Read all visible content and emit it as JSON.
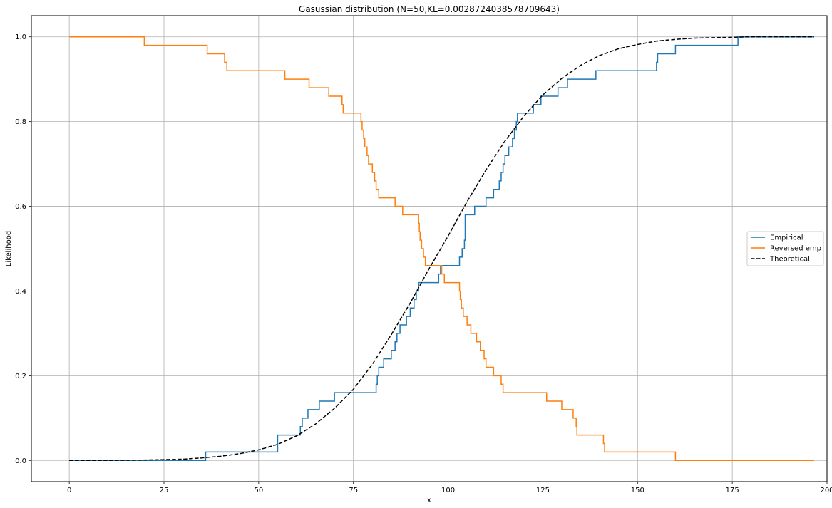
{
  "chart_data": {
    "type": "line",
    "title": "Gasussian distribution (N=50,KL=0.0028724038578709643)",
    "xlabel": "x",
    "ylabel": "Likelihood",
    "xlim": [
      -10,
      200
    ],
    "ylim": [
      -0.05,
      1.05
    ],
    "xticks": [
      0,
      25,
      50,
      75,
      100,
      125,
      150,
      175,
      200
    ],
    "yticks": [
      0.0,
      0.2,
      0.4,
      0.6,
      0.8,
      1.0
    ],
    "xtick_labels": [
      "0",
      "25",
      "50",
      "75",
      "100",
      "125",
      "150",
      "175",
      "200"
    ],
    "ytick_labels": [
      "0.0",
      "0.2",
      "0.4",
      "0.6",
      "0.8",
      "1.0"
    ],
    "grid": true,
    "legend_position": "center-right",
    "series": [
      {
        "name": "Empirical",
        "style": "step",
        "color": "#1f77b4",
        "x": [
          0,
          36,
          55,
          61,
          61.5,
          61.7,
          63,
          66,
          70,
          81,
          81.3,
          81.7,
          83,
          85,
          86,
          86.5,
          87.3,
          88,
          89,
          90,
          91,
          91.6,
          92.2,
          97.5,
          98,
          103,
          103.7,
          104.3,
          104.5,
          107,
          110,
          112,
          113.5,
          114,
          114.5,
          115,
          116,
          117,
          117.5,
          118,
          118.3,
          119,
          122.5,
          124.5,
          125,
          129,
          131.5,
          139,
          155,
          155.3,
          156,
          160,
          176.5,
          196.6
        ],
        "y": [
          0.0,
          0.02,
          0.06,
          0.08,
          0.1,
          0.1,
          0.12,
          0.14,
          0.16,
          0.18,
          0.2,
          0.22,
          0.24,
          0.26,
          0.28,
          0.3,
          0.32,
          0.32,
          0.34,
          0.36,
          0.38,
          0.4,
          0.42,
          0.44,
          0.46,
          0.48,
          0.5,
          0.52,
          0.58,
          0.6,
          0.62,
          0.64,
          0.66,
          0.68,
          0.7,
          0.72,
          0.74,
          0.76,
          0.78,
          0.8,
          0.82,
          0.82,
          0.84,
          0.86,
          0.86,
          0.88,
          0.9,
          0.92,
          0.94,
          0.96,
          0.96,
          0.98,
          1.0,
          1.0
        ]
      },
      {
        "name": "Reversed emp",
        "style": "step",
        "color": "#ff7f0e",
        "x": [
          0,
          19.8,
          36.4,
          41,
          41.3,
          41.6,
          56.9,
          63.3,
          68.5,
          72,
          72.3,
          72.8,
          77,
          77.3,
          77.7,
          78,
          78.3,
          78.6,
          79,
          80,
          80.6,
          81,
          81.3,
          81.7,
          83,
          86,
          88,
          92.2,
          92.4,
          92.6,
          93,
          93.5,
          94,
          95,
          98.3,
          99,
          103,
          103.2,
          103.5,
          104,
          105,
          106,
          107.5,
          108.5,
          109,
          109.5,
          110,
          112,
          114,
          114.5,
          115,
          126,
          130,
          133,
          133.8,
          134,
          141,
          141.3,
          160,
          196.6
        ],
        "y": [
          1.0,
          0.98,
          0.96,
          0.94,
          0.94,
          0.92,
          0.9,
          0.88,
          0.86,
          0.84,
          0.82,
          0.82,
          0.8,
          0.78,
          0.76,
          0.74,
          0.74,
          0.72,
          0.7,
          0.68,
          0.66,
          0.64,
          0.64,
          0.62,
          0.62,
          0.6,
          0.58,
          0.56,
          0.54,
          0.52,
          0.5,
          0.48,
          0.46,
          0.46,
          0.44,
          0.42,
          0.4,
          0.38,
          0.36,
          0.34,
          0.32,
          0.3,
          0.28,
          0.26,
          0.26,
          0.24,
          0.22,
          0.2,
          0.18,
          0.16,
          0.16,
          0.14,
          0.12,
          0.1,
          0.08,
          0.06,
          0.04,
          0.02,
          0.0,
          0.0
        ]
      },
      {
        "name": "Theoretical",
        "style": "dashed",
        "color": "#000000",
        "x": [
          0,
          10,
          20,
          25,
          30,
          35,
          40,
          45,
          50,
          55,
          60,
          65,
          70,
          75,
          80,
          85,
          90,
          95,
          100,
          105,
          110,
          115,
          120,
          125,
          130,
          135,
          140,
          145,
          150,
          155,
          160,
          165,
          170,
          175,
          180,
          185,
          190,
          196.6
        ],
        "y": [
          0.0,
          0.0,
          0.001,
          0.002,
          0.003,
          0.006,
          0.01,
          0.016,
          0.025,
          0.038,
          0.058,
          0.086,
          0.123,
          0.168,
          0.227,
          0.297,
          0.372,
          0.453,
          0.53,
          0.611,
          0.686,
          0.754,
          0.813,
          0.863,
          0.902,
          0.933,
          0.956,
          0.972,
          0.982,
          0.99,
          0.994,
          0.997,
          0.998,
          0.999,
          1.0,
          1.0,
          1.0,
          1.0
        ]
      }
    ]
  }
}
